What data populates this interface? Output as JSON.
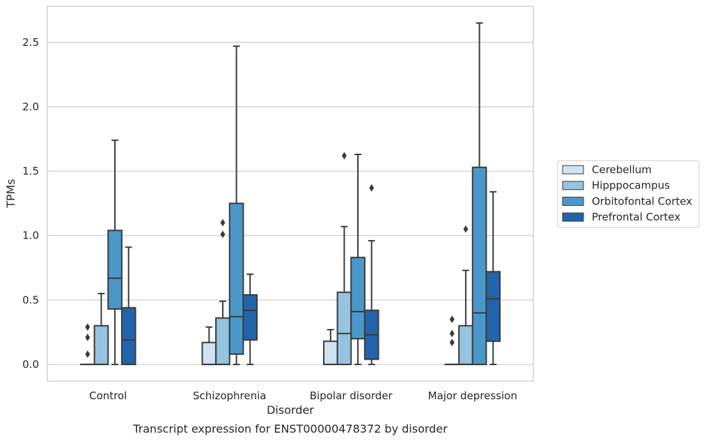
{
  "chart_data": {
    "type": "box",
    "caption": "Transcript expression for ENST00000478372 by disorder",
    "xlabel": "Disorder",
    "ylabel": "TPMs",
    "ylim": [
      -0.13,
      2.78
    ],
    "yticks": [
      "0.0",
      "0.5",
      "1.0",
      "1.5",
      "2.0",
      "2.5"
    ],
    "grid": true,
    "legend_position": "right",
    "categories": [
      "Control",
      "Schizophrenia",
      "Bipolar disorder",
      "Major depression"
    ],
    "series": [
      {
        "name": "Cerebellum",
        "color": "#d0e1f2",
        "boxes": [
          {
            "whislo": 0,
            "q1": 0,
            "med": 0,
            "q3": 0,
            "whishi": 0,
            "fliers": [
              0.08,
              0.21,
              0.29
            ]
          },
          {
            "whislo": 0,
            "q1": 0,
            "med": 0,
            "q3": 0.17,
            "whishi": 0.29,
            "fliers": []
          },
          {
            "whislo": 0,
            "q1": 0,
            "med": 0,
            "q3": 0.18,
            "whishi": 0.27,
            "fliers": []
          },
          {
            "whislo": 0,
            "q1": 0,
            "med": 0,
            "q3": 0,
            "whishi": 0,
            "fliers": [
              0.17,
              0.24,
              0.35
            ]
          }
        ]
      },
      {
        "name": "Hipppocampus",
        "color": "#94c4df",
        "boxes": [
          {
            "whislo": 0,
            "q1": 0,
            "med": 0,
            "q3": 0.3,
            "whishi": 0.55,
            "fliers": []
          },
          {
            "whislo": 0,
            "q1": 0,
            "med": 0,
            "q3": 0.36,
            "whishi": 0.49,
            "fliers": [
              1.01,
              1.1
            ]
          },
          {
            "whislo": 0,
            "q1": 0,
            "med": 0.24,
            "q3": 0.56,
            "whishi": 1.07,
            "fliers": [
              1.62
            ]
          },
          {
            "whislo": 0,
            "q1": 0,
            "med": 0,
            "q3": 0.3,
            "whishi": 0.73,
            "fliers": [
              1.05
            ]
          }
        ]
      },
      {
        "name": "Orbitofontal Cortex",
        "color": "#4a98c9",
        "boxes": [
          {
            "whislo": 0,
            "q1": 0.43,
            "med": 0.67,
            "q3": 1.04,
            "whishi": 1.74,
            "fliers": []
          },
          {
            "whislo": 0,
            "q1": 0.08,
            "med": 0.37,
            "q3": 1.25,
            "whishi": 2.47,
            "fliers": []
          },
          {
            "whislo": 0,
            "q1": 0.2,
            "med": 0.41,
            "q3": 0.83,
            "whishi": 1.63,
            "fliers": []
          },
          {
            "whislo": 0,
            "q1": 0,
            "med": 0.4,
            "q3": 1.53,
            "whishi": 2.65,
            "fliers": []
          }
        ]
      },
      {
        "name": "Prefrontal Cortex",
        "color": "#2164ab",
        "boxes": [
          {
            "whislo": 0,
            "q1": 0,
            "med": 0.19,
            "q3": 0.44,
            "whishi": 0.91,
            "fliers": []
          },
          {
            "whislo": 0,
            "q1": 0.19,
            "med": 0.42,
            "q3": 0.54,
            "whishi": 0.7,
            "fliers": []
          },
          {
            "whislo": 0,
            "q1": 0.04,
            "med": 0.23,
            "q3": 0.42,
            "whishi": 0.96,
            "fliers": [
              1.37
            ]
          },
          {
            "whislo": 0,
            "q1": 0.18,
            "med": 0.51,
            "q3": 0.72,
            "whishi": 1.34,
            "fliers": []
          }
        ]
      }
    ]
  }
}
